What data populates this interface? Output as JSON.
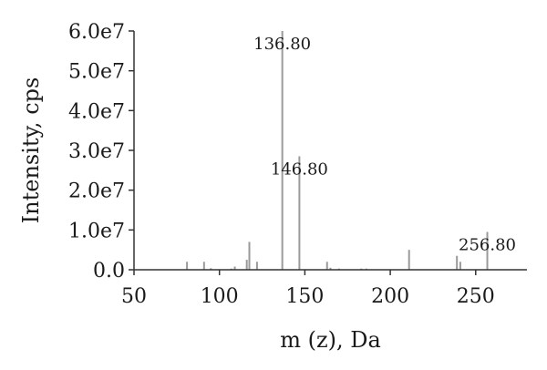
{
  "chart_data": {
    "type": "bar",
    "xlabel": "m (z), Da",
    "ylabel": "Intensity, cps",
    "xlim": [
      50,
      280
    ],
    "ylim": [
      0,
      60000000
    ],
    "xticks": [
      50,
      100,
      150,
      200,
      250
    ],
    "yticks": [
      0,
      10000000,
      20000000,
      30000000,
      40000000,
      50000000,
      60000000
    ],
    "yticklabels": [
      "0.0",
      "1.0e7",
      "2.0e7",
      "3.0e7",
      "4.0e7",
      "5.0e7",
      "6.0e7"
    ],
    "grid": false,
    "peaks": [
      {
        "mz": 81,
        "intensity": 2000000
      },
      {
        "mz": 91,
        "intensity": 2000000
      },
      {
        "mz": 95,
        "intensity": 400000
      },
      {
        "mz": 107,
        "intensity": 300000
      },
      {
        "mz": 109,
        "intensity": 800000
      },
      {
        "mz": 116,
        "intensity": 2500000
      },
      {
        "mz": 117.5,
        "intensity": 7000000
      },
      {
        "mz": 122,
        "intensity": 2000000
      },
      {
        "mz": 136.8,
        "intensity": 60000000
      },
      {
        "mz": 146.8,
        "intensity": 28500000
      },
      {
        "mz": 163,
        "intensity": 2000000
      },
      {
        "mz": 165,
        "intensity": 500000
      },
      {
        "mz": 170,
        "intensity": 300000
      },
      {
        "mz": 183,
        "intensity": 300000
      },
      {
        "mz": 186,
        "intensity": 300000
      },
      {
        "mz": 211,
        "intensity": 5000000
      },
      {
        "mz": 239,
        "intensity": 3500000
      },
      {
        "mz": 241,
        "intensity": 2000000
      },
      {
        "mz": 256.8,
        "intensity": 9500000
      }
    ],
    "annotations": [
      {
        "mz": 136.8,
        "intensity": 60000000,
        "text": "136.80"
      },
      {
        "mz": 146.8,
        "intensity": 28500000,
        "text": "146.80"
      },
      {
        "mz": 256.8,
        "intensity": 9500000,
        "text": "256.80"
      }
    ]
  }
}
